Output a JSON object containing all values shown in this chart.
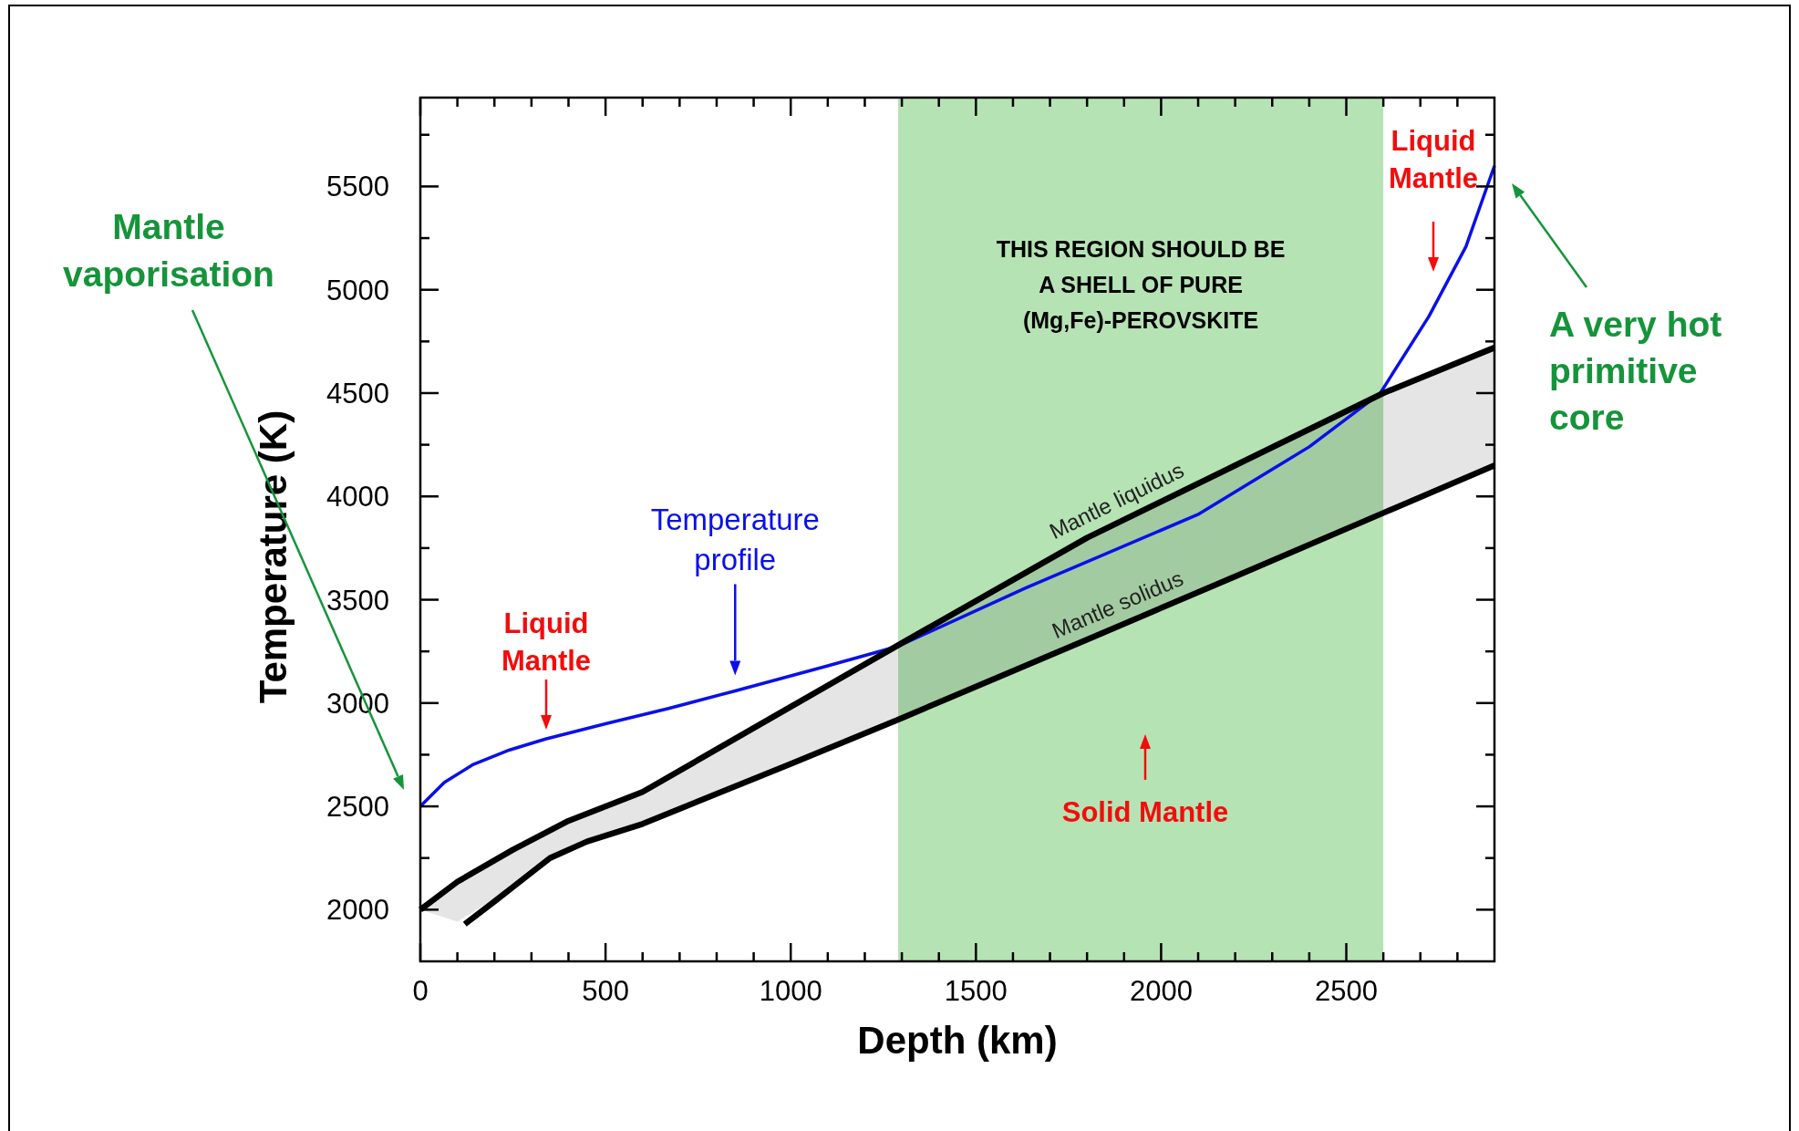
{
  "chart_data": {
    "type": "line",
    "xlabel": "Depth (km)",
    "ylabel": "Temperature (K)",
    "xlim": [
      0,
      2900
    ],
    "ylim": [
      1750,
      5930
    ],
    "xticks": [
      0,
      {
        "value": 100,
        "label": null
      },
      {
        "value": 200,
        "label": null
      },
      {
        "value": 300,
        "label": null
      },
      {
        "value": 400,
        "label": null
      },
      500,
      {
        "value": 600,
        "label": null
      },
      {
        "value": 700,
        "label": null
      },
      {
        "value": 800,
        "label": null
      },
      {
        "value": 900,
        "label": null
      },
      1000,
      {
        "value": 1100,
        "label": null
      },
      {
        "value": 1200,
        "label": null
      },
      {
        "value": 1300,
        "label": null
      },
      {
        "value": 1400,
        "label": null
      },
      1500,
      {
        "value": 1600,
        "label": null
      },
      {
        "value": 1700,
        "label": null
      },
      {
        "value": 1800,
        "label": null
      },
      {
        "value": 1900,
        "label": null
      },
      2000,
      {
        "value": 2100,
        "label": null
      },
      {
        "value": 2200,
        "label": null
      },
      {
        "value": 2300,
        "label": null
      },
      {
        "value": 2400,
        "label": null
      },
      2500,
      {
        "value": 2600,
        "label": null
      },
      {
        "value": 2700,
        "label": null
      },
      {
        "value": 2800,
        "label": null
      }
    ],
    "yticks": [
      2000,
      {
        "value": 2250,
        "label": null
      },
      2500,
      {
        "value": 2750,
        "label": null
      },
      3000,
      {
        "value": 3250,
        "label": null
      },
      3500,
      {
        "value": 3750,
        "label": null
      },
      4000,
      {
        "value": 4250,
        "label": null
      },
      4500,
      {
        "value": 4750,
        "label": null
      },
      5000,
      {
        "value": 5250,
        "label": null
      },
      5500,
      {
        "value": 5750,
        "label": null
      }
    ],
    "grid": false,
    "marker": "none",
    "line_style": "solid",
    "bands": [
      {
        "axis": "x",
        "from": 1290,
        "to": 2600,
        "color": "#b6e3b4",
        "label": "THIS REGION SHOULD BE\nA SHELL OF PURE\n(Mg,Fe)-PEROVSKITE"
      }
    ],
    "series": [
      {
        "name": "Temperature profile",
        "color": "#0a10e8",
        "x": [
          0,
          65,
          143,
          241,
          338,
          500,
          670,
          850,
          1100,
          1290,
          1633,
          2099,
          2400,
          2591,
          2723,
          2823,
          2900
        ],
        "values": [
          2500,
          2616,
          2703,
          2773,
          2826,
          2900,
          2974,
          3059,
          3180,
          3275,
          3556,
          3912,
          4240,
          4498,
          4871,
          5209,
          5600
        ]
      },
      {
        "name": "Mantle liquidus",
        "color": "#000000",
        "x": [
          0,
          100,
          250,
          400,
          600,
          1000,
          1290,
          1800,
          2200,
          2600,
          2900
        ],
        "values": [
          2000,
          2135,
          2290,
          2430,
          2570,
          2982,
          3280,
          3800,
          4150,
          4500,
          4720
        ],
        "lower": [
          2000,
          1942,
          2110,
          2290,
          2415,
          2706,
          2920,
          3307,
          3613,
          3920,
          4150
        ],
        "upper": [
          2000,
          2135,
          2290,
          2430,
          2570,
          2982,
          3280,
          3800,
          4150,
          4500,
          4720
        ]
      },
      {
        "name": "Mantle solidus",
        "color": "#000000",
        "x": [
          120,
          200,
          250,
          350,
          450,
          600,
          1000,
          1290,
          1800,
          2200,
          2600,
          2900
        ],
        "values": [
          1930,
          2040,
          2110,
          2250,
          2330,
          2415,
          2706,
          2920,
          3307,
          3613,
          3920,
          4150
        ]
      }
    ],
    "annotations": [
      "Mantle\nvaporisation",
      "A very hot\nprimitive\ncore",
      "Liquid\nMantle",
      "Solid Mantle",
      "Liquid\nMantle"
    ]
  }
}
